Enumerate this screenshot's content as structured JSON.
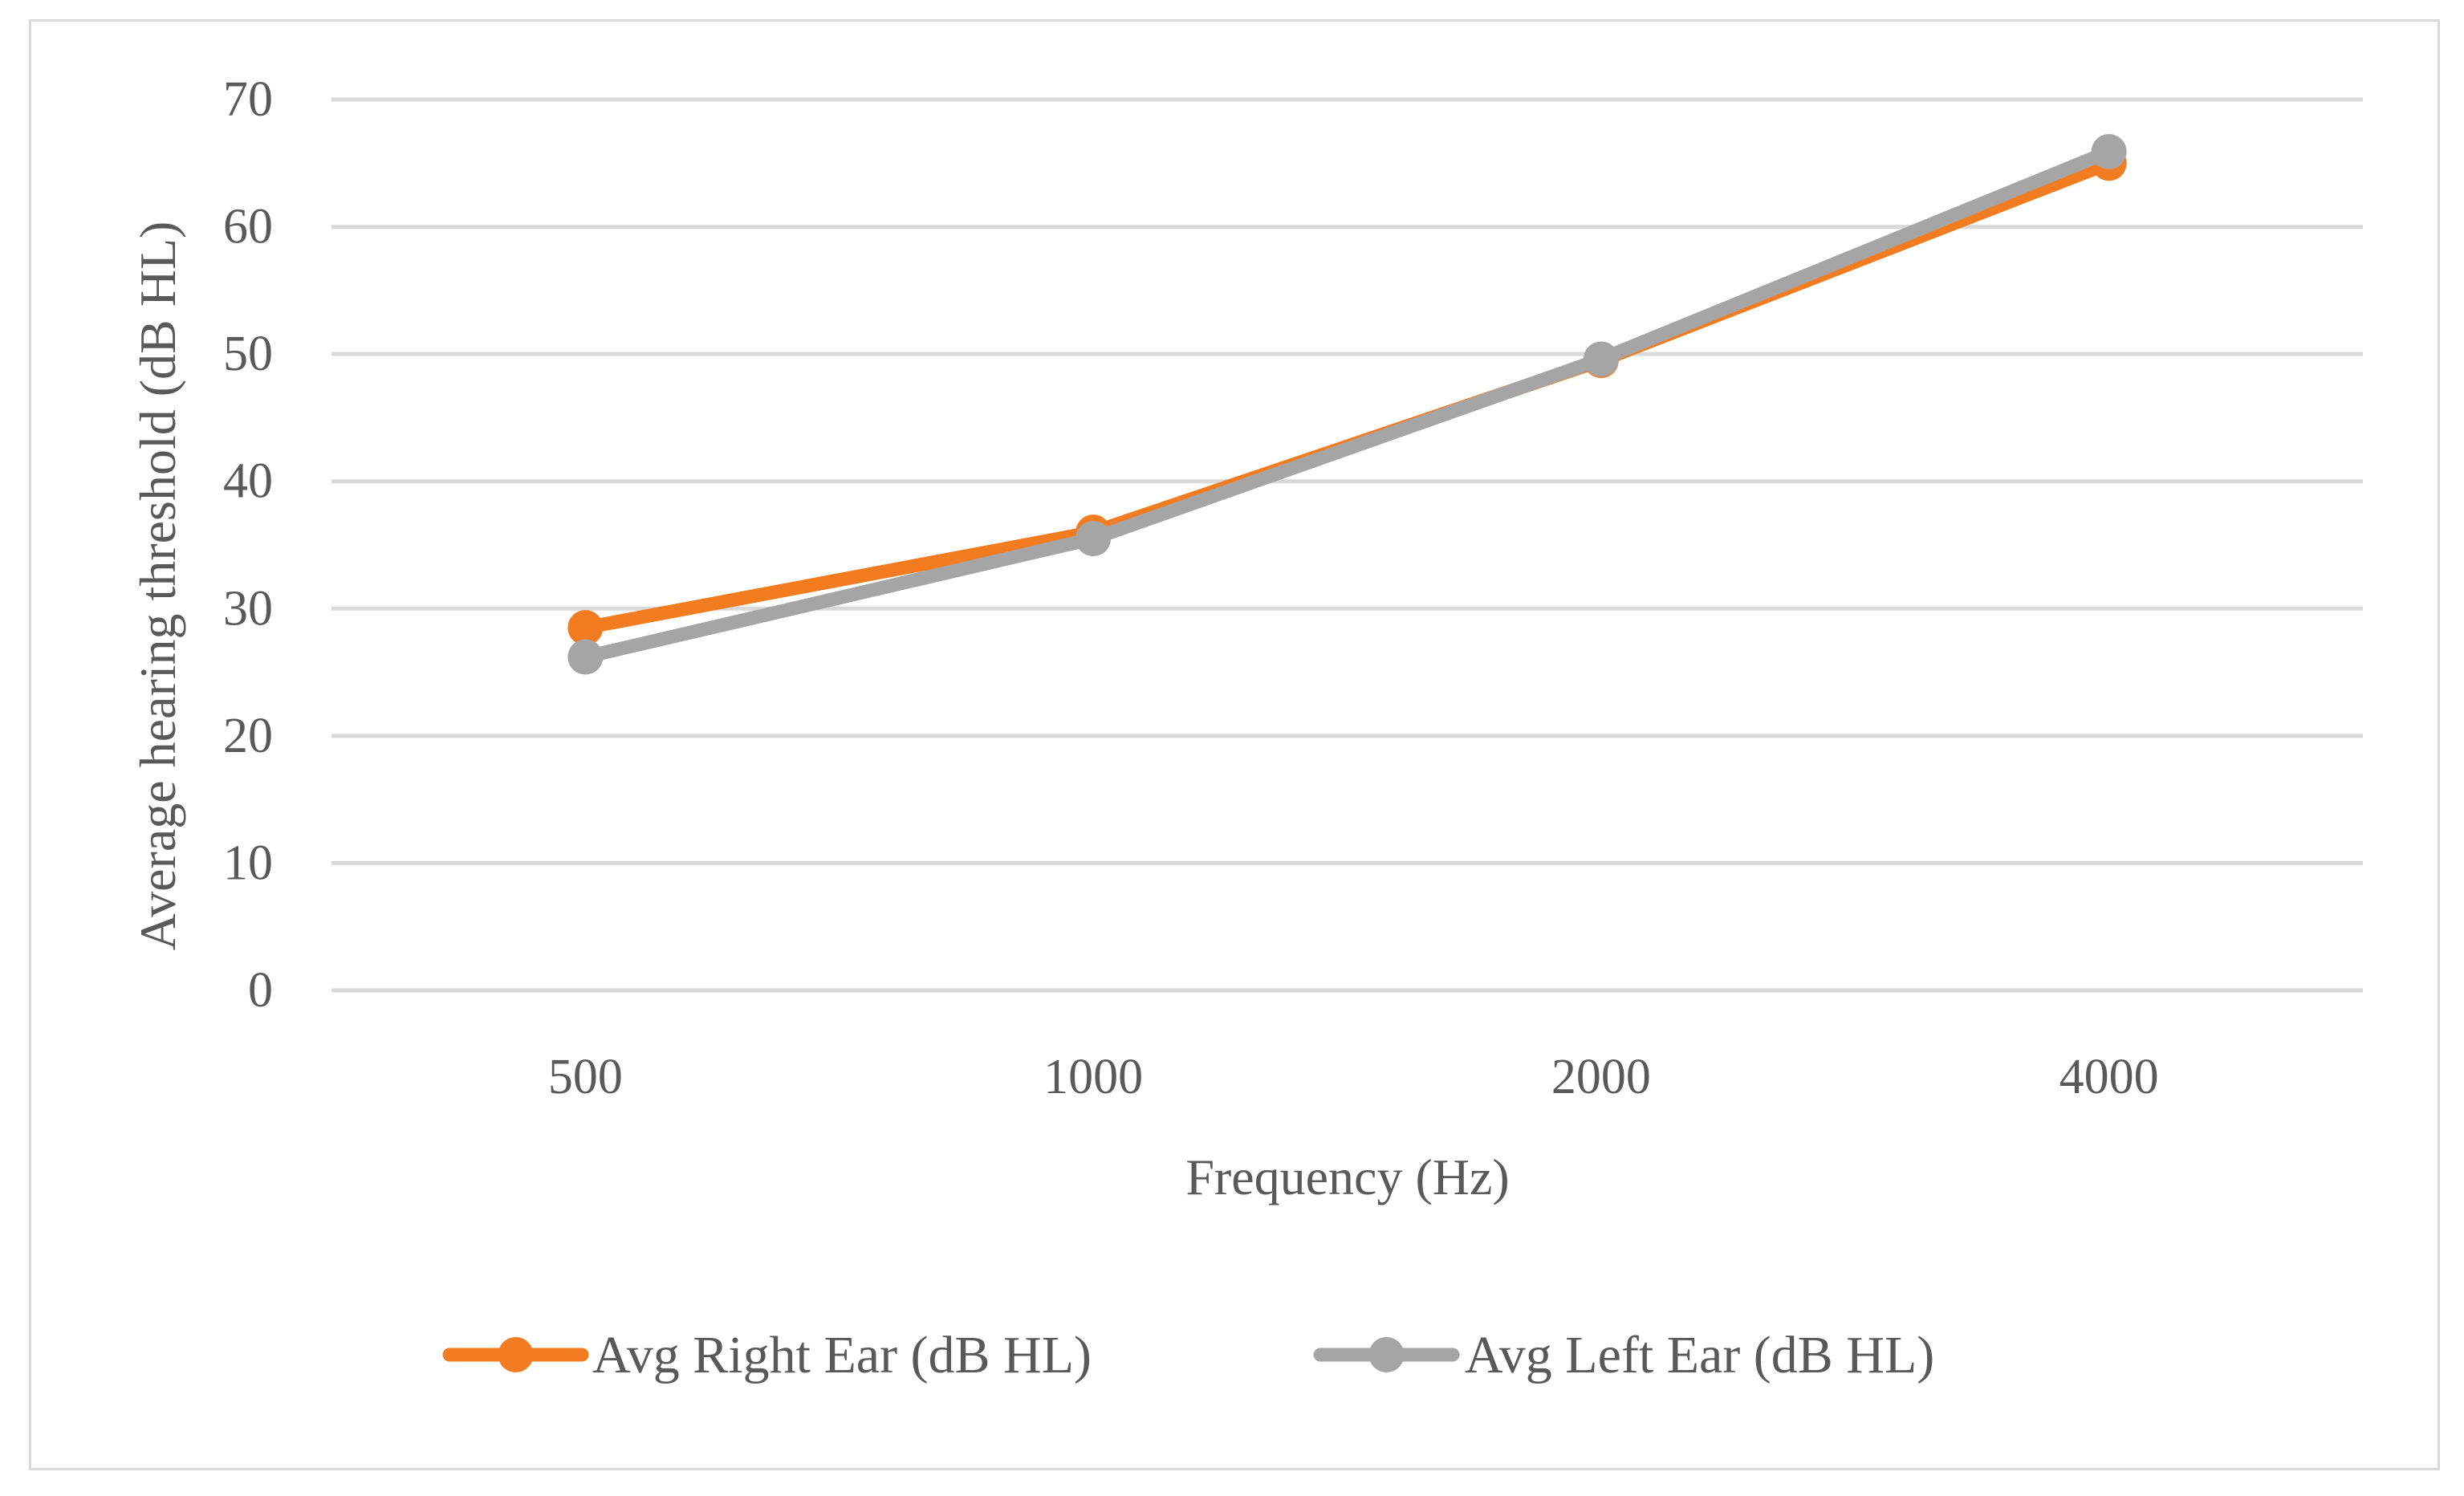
{
  "chart_data": {
    "type": "line",
    "categories": [
      "500",
      "1000",
      "2000",
      "4000"
    ],
    "series": [
      {
        "name": "Avg Right Ear (dB HL)",
        "values": [
          28.5,
          36.0,
          49.5,
          65.0
        ],
        "color": "#f47c20"
      },
      {
        "name": "Avg Left Ear (dB HL)",
        "values": [
          26.2,
          35.5,
          49.6,
          65.9
        ],
        "color": "#a5a5a5"
      }
    ],
    "xlabel": "Frequency (Hz)",
    "ylabel": "Average hearing threshold (dB HL)",
    "ylim": [
      0,
      70
    ],
    "yticks": [
      "0",
      "10",
      "20",
      "30",
      "40",
      "50",
      "60",
      "70"
    ],
    "grid": "horizontal",
    "legend": "bottom",
    "gridline_color": "#d9d9d9",
    "text_color": "#595959"
  }
}
